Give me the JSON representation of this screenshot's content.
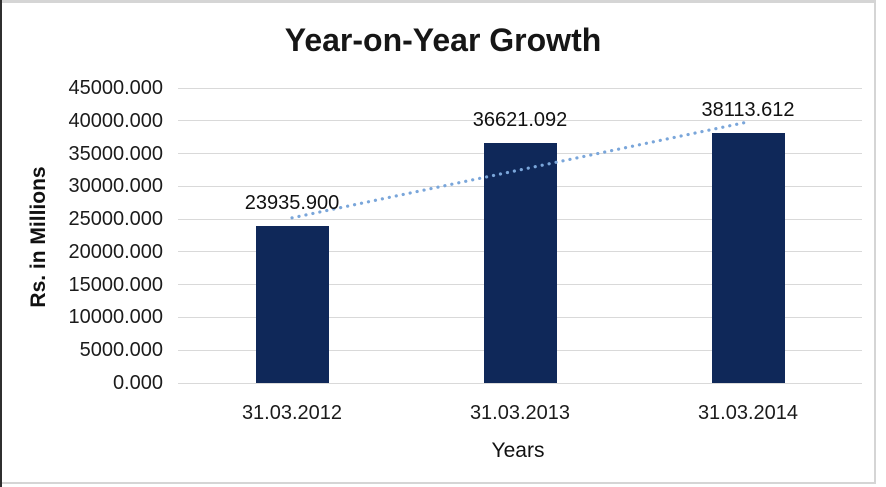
{
  "chart_data": {
    "type": "bar",
    "title": "Year-on-Year Growth",
    "xlabel": "Years",
    "ylabel": "Rs. in Millions",
    "categories": [
      "31.03.2012",
      "31.03.2013",
      "31.03.2014"
    ],
    "values": [
      23935.9,
      36621.092,
      38113.612
    ],
    "data_labels": [
      "23935.900",
      "36621.092",
      "38113.612"
    ],
    "ylim": [
      0,
      45000
    ],
    "ytick_step": 5000,
    "ytick_labels_top_to_bottom": [
      "45000.000",
      "40000.000",
      "35000.000",
      "30000.000",
      "25000.000",
      "20000.000",
      "15000.000",
      "10000.000",
      "5000.000",
      "0.000"
    ],
    "grid": true,
    "legend": "none",
    "trendline": {
      "type": "linear",
      "style": "dotted"
    },
    "colors": {
      "bar": "#0f2859",
      "trendline": "#7aa6da",
      "gridline": "#d9d9d9",
      "text": "#1b1b1b",
      "frame_border": "#d5d5d5"
    }
  }
}
